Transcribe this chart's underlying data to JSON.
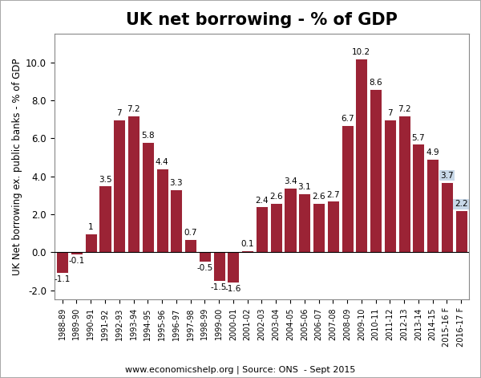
{
  "title": "UK net borrowing - % of GDP",
  "ylabel": "UK Net borrowing ex. public banks - % of GDP",
  "source_text": "www.economicshelp.org | Source: ONS  - Sept 2015",
  "categories": [
    "1988-89",
    "1989-90",
    "1990-91",
    "1991-92",
    "1992-93",
    "1993-94",
    "1994-95",
    "1995-96",
    "1996-97",
    "1997-98",
    "1998-99",
    "1999-00",
    "2000-01",
    "2001-02",
    "2002-03",
    "2003-04",
    "2004-05",
    "2005-06",
    "2006-07",
    "2007-08",
    "2008-09",
    "2009-10",
    "2010-11",
    "2011-12",
    "2012-13",
    "2013-14",
    "2014-15",
    "2015-16 F",
    "2016-17 F"
  ],
  "values": [
    -1.1,
    -0.1,
    1.0,
    3.5,
    7.0,
    7.2,
    5.8,
    4.4,
    3.3,
    0.7,
    -0.5,
    -1.5,
    -1.6,
    0.1,
    2.4,
    2.6,
    3.4,
    3.1,
    2.6,
    2.7,
    6.7,
    10.2,
    8.6,
    7.0,
    7.2,
    5.7,
    4.9,
    3.7,
    2.2
  ],
  "forecast_indices": [
    27,
    28
  ],
  "bar_color": "#9B2335",
  "forecast_label_bg": "#c8d8e8",
  "ylim": [
    -2.5,
    11.5
  ],
  "yticks": [
    -2.0,
    0.0,
    2.0,
    4.0,
    6.0,
    8.0,
    10.0
  ],
  "title_fontsize": 15,
  "ylabel_fontsize": 8.5,
  "bar_label_fontsize": 7.5,
  "xtick_fontsize": 7,
  "ytick_fontsize": 8.5,
  "source_fontsize": 8,
  "background_color": "#ffffff",
  "plot_bg_color": "#ffffff",
  "border_color": "#aaaaaa"
}
